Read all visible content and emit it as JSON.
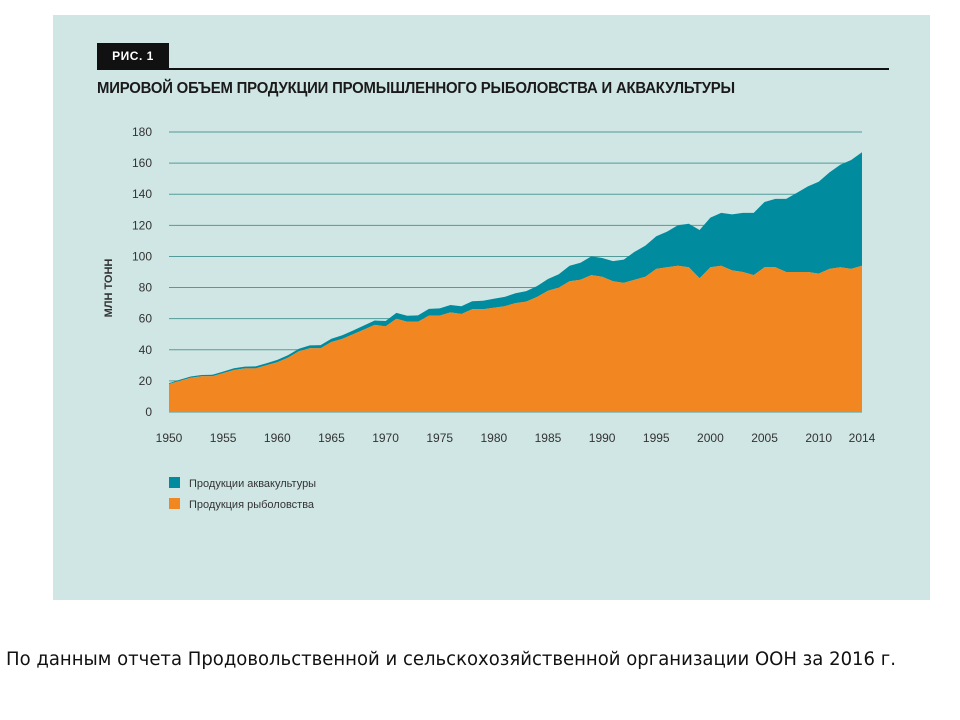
{
  "figure": {
    "label": "РИС. 1",
    "title": "МИРОВОЙ ОБЪЕМ ПРОДУКЦИИ ПРОМЫШЛЕННОГО РЫБОЛОВСТВА И АКВАКУЛЬТУРЫ"
  },
  "caption": "По данным отчета Продовольственной и сельскохозяйственной организации ООН за 2016 г.",
  "colors": {
    "panel_bg": "#cfe6e4",
    "aquaculture": "#008b9e",
    "fishing": "#f28722"
  },
  "chart_data": {
    "type": "area",
    "stacked": true,
    "title": "МИРОВОЙ ОБЪЕМ ПРОДУКЦИИ ПРОМЫШЛЕННОГО РЫБОЛОВСТВА И АКВАКУЛЬТУРЫ",
    "xlabel": "",
    "ylabel": "МЛН ТОНН",
    "xlim": [
      1950,
      2014
    ],
    "ylim": [
      0,
      180
    ],
    "x_ticks": [
      1950,
      1955,
      1960,
      1965,
      1970,
      1975,
      1980,
      1985,
      1990,
      1995,
      2000,
      2005,
      2010,
      2014
    ],
    "y_ticks": [
      0,
      20,
      40,
      60,
      80,
      100,
      120,
      140,
      160,
      180
    ],
    "grid": true,
    "legend_position": "bottom-left",
    "x": [
      1950,
      1951,
      1952,
      1953,
      1954,
      1955,
      1956,
      1957,
      1958,
      1959,
      1960,
      1961,
      1962,
      1963,
      1964,
      1965,
      1966,
      1967,
      1968,
      1969,
      1970,
      1971,
      1972,
      1973,
      1974,
      1975,
      1976,
      1977,
      1978,
      1979,
      1980,
      1981,
      1982,
      1983,
      1984,
      1985,
      1986,
      1987,
      1988,
      1989,
      1990,
      1991,
      1992,
      1993,
      1994,
      1995,
      1996,
      1997,
      1998,
      1999,
      2000,
      2001,
      2002,
      2003,
      2004,
      2005,
      2006,
      2007,
      2008,
      2009,
      2010,
      2011,
      2012,
      2013,
      2014
    ],
    "series": [
      {
        "name": "Продукция рыболовства",
        "values": [
          18,
          20,
          22,
          23,
          23,
          25,
          27,
          28,
          28,
          30,
          32,
          35,
          39,
          41,
          41,
          45,
          47,
          50,
          53,
          56,
          55,
          60,
          58,
          58,
          62,
          62,
          64,
          63,
          66,
          66,
          67,
          68,
          70,
          71,
          74,
          78,
          80,
          84,
          85,
          88,
          87,
          84,
          83,
          85,
          87,
          92,
          93,
          94,
          93,
          86,
          93,
          94,
          91,
          90,
          88,
          93,
          93,
          90,
          90,
          90,
          89,
          92,
          93,
          92,
          94
        ]
      },
      {
        "name": "Продукции аквакультуры",
        "values": [
          0.6,
          0.7,
          0.8,
          0.8,
          0.9,
          1.0,
          1.1,
          1.2,
          1.3,
          1.4,
          1.5,
          1.6,
          1.7,
          1.8,
          2.0,
          2.1,
          2.3,
          2.4,
          2.6,
          2.8,
          3.5,
          3.7,
          3.9,
          4.1,
          4.3,
          4.6,
          4.8,
          5.0,
          5.2,
          5.5,
          5.8,
          6.0,
          6.3,
          6.7,
          7.0,
          7.5,
          8.5,
          10,
          11,
          12,
          12,
          13,
          15,
          18,
          20,
          21,
          23,
          26,
          28,
          31,
          32,
          34,
          36,
          38,
          40,
          42,
          44,
          47,
          51,
          55,
          59,
          62,
          66,
          70,
          73
        ]
      }
    ],
    "legend": [
      {
        "label": "Продукции аквакультуры",
        "color": "#008b9e"
      },
      {
        "label": "Продукция рыболовства",
        "color": "#f28722"
      }
    ]
  }
}
